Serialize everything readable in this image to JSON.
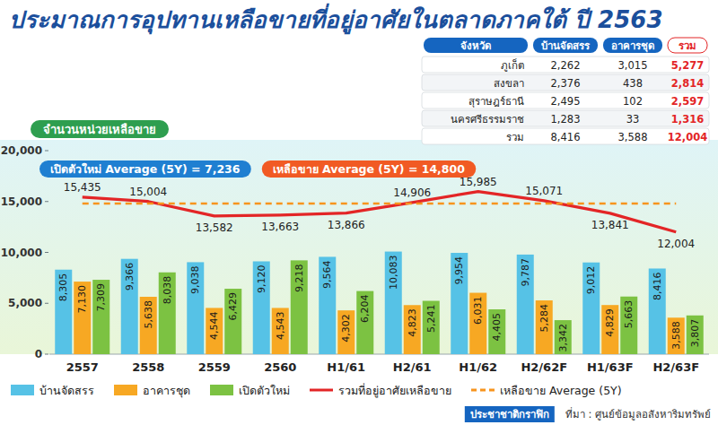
{
  "chart_data": {
    "type": "bar",
    "title": "ประมาณการอุปทานเหลือขายที่อยู่อาศัยในตลาดภาคใต้ ปี 2563",
    "y_label": "จำนวนหน่วยเหลือขาย",
    "annotations": [
      "เปิดตัวใหม่ Average (5Y) = 7,236",
      "เหลือขาย Average (5Y) = 14,800"
    ],
    "categories": [
      "2557",
      "2558",
      "2559",
      "2560",
      "H1/61",
      "H2/61",
      "H1/62",
      "H2/62F",
      "H1/63F",
      "H2/63F"
    ],
    "series": [
      {
        "name": "บ้านจัดสรร",
        "type": "bar",
        "color": "#56c2e6",
        "values": [
          8305,
          9366,
          9038,
          9120,
          9564,
          10083,
          9954,
          9787,
          9012,
          8416
        ],
        "value_labels": [
          "8,305",
          "9,366",
          "9,038",
          "9,120",
          "9,564",
          "10,083",
          "9,954",
          "9,787",
          "9,012",
          "8,416"
        ]
      },
      {
        "name": "อาคารชุด",
        "type": "bar",
        "color": "#f7a823",
        "values": [
          7130,
          5638,
          4544,
          4543,
          4302,
          4823,
          6031,
          5284,
          4829,
          3588
        ],
        "value_labels": [
          "7,130",
          "5,638",
          "4,544",
          "4,543",
          "4,302",
          "4,823",
          "6,031",
          "5,284",
          "4,829",
          "3,588"
        ]
      },
      {
        "name": "เปิดตัวใหม่",
        "type": "bar",
        "color": "#7cc242",
        "values": [
          7309,
          8038,
          6429,
          9218,
          6204,
          5241,
          4405,
          3342,
          5663,
          3807
        ],
        "value_labels": [
          "7,309",
          "8,038",
          "6,429",
          "9,218",
          "6,204",
          "5,241",
          "4,405",
          "3,342",
          "5,663",
          "3,807"
        ]
      },
      {
        "name": "รวมที่อยู่อาศัยเหลือขาย",
        "type": "line",
        "color": "#e32526",
        "line_style": "solid",
        "values": [
          15435,
          15004,
          13582,
          13663,
          13866,
          14906,
          15985,
          15071,
          13841,
          12004
        ],
        "value_labels": [
          "15,435",
          "15,004",
          "13,582",
          "13,663",
          "13,866",
          "14,906",
          "15,985",
          "15,071",
          "13,841",
          "12,004"
        ]
      },
      {
        "name": "เหลือขาย Average (5Y)",
        "type": "line",
        "color": "#f7941d",
        "line_style": "dashed",
        "data_labels": false,
        "values": [
          14800,
          14800,
          14800,
          14800,
          14800,
          14800,
          14800,
          14800,
          14800,
          14800
        ]
      }
    ],
    "ylim": [
      0,
      20000
    ],
    "yticks": [
      0,
      {
        "value": 5000,
        "label": "5,000"
      },
      {
        "value": 10000,
        "label": "10,000"
      },
      {
        "value": 15000,
        "label": "15,000"
      },
      {
        "value": 20000,
        "label": "20,000"
      }
    ],
    "grid": false,
    "data_labels": true,
    "legend": "bottom",
    "credit": "ประชาชาติกราฟิก",
    "source": "ที่มา : ศูนย์ข้อมูลอสังหาริมทรัพย์"
  },
  "table": {
    "columns": [
      "จังหวัด",
      "บ้านจัดสรร",
      "อาคารชุด",
      "รวม"
    ],
    "rows": [
      [
        "ภูเก็ต",
        "2,262",
        "3,015",
        "5,277"
      ],
      [
        "สงขลา",
        "2,376",
        "438",
        "2,814"
      ],
      [
        "สุราษฎร์ธานี",
        "2,495",
        "102",
        "2,597"
      ],
      [
        "นครศรีธรรมราช",
        "1,283",
        "33",
        "1,316"
      ],
      [
        "รวม",
        "8,416",
        "3,588",
        "12,004"
      ]
    ]
  }
}
